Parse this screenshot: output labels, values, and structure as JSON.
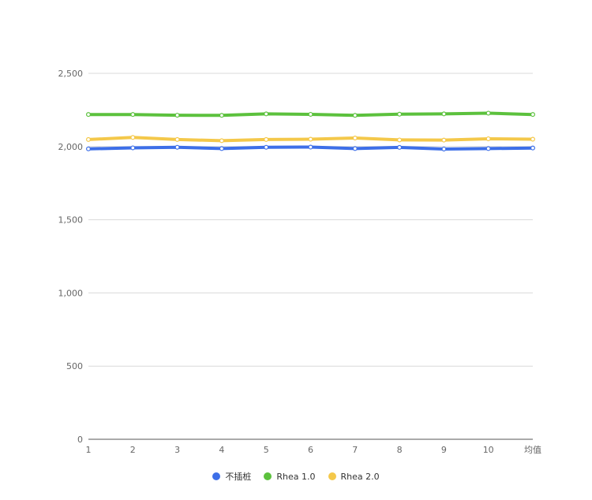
{
  "chart_data": {
    "type": "line",
    "categories": [
      "1",
      "2",
      "3",
      "4",
      "5",
      "6",
      "7",
      "8",
      "9",
      "10",
      "均值"
    ],
    "ylim": [
      0,
      2500
    ],
    "yticks": [
      0,
      500,
      1000,
      1500,
      2000,
      2500
    ],
    "ytick_labels": [
      "0",
      "500",
      "1,000",
      "1,500",
      "2,000",
      "2,500"
    ],
    "grid": true,
    "legend_position": "bottom",
    "series": [
      {
        "name": "不插桩",
        "color": "#3d6fe8",
        "values": [
          1984,
          1991,
          1995,
          1986,
          1995,
          1996,
          1986,
          1994,
          1983,
          1986,
          1990
        ]
      },
      {
        "name": "Rhea 1.0",
        "color": "#5cc13d",
        "values": [
          2219,
          2219,
          2214,
          2213,
          2223,
          2220,
          2213,
          2221,
          2223,
          2228,
          2219
        ]
      },
      {
        "name": "Rhea 2.0",
        "color": "#f4c84a",
        "values": [
          2048,
          2062,
          2048,
          2040,
          2048,
          2050,
          2058,
          2045,
          2044,
          2053,
          2050
        ]
      }
    ]
  }
}
